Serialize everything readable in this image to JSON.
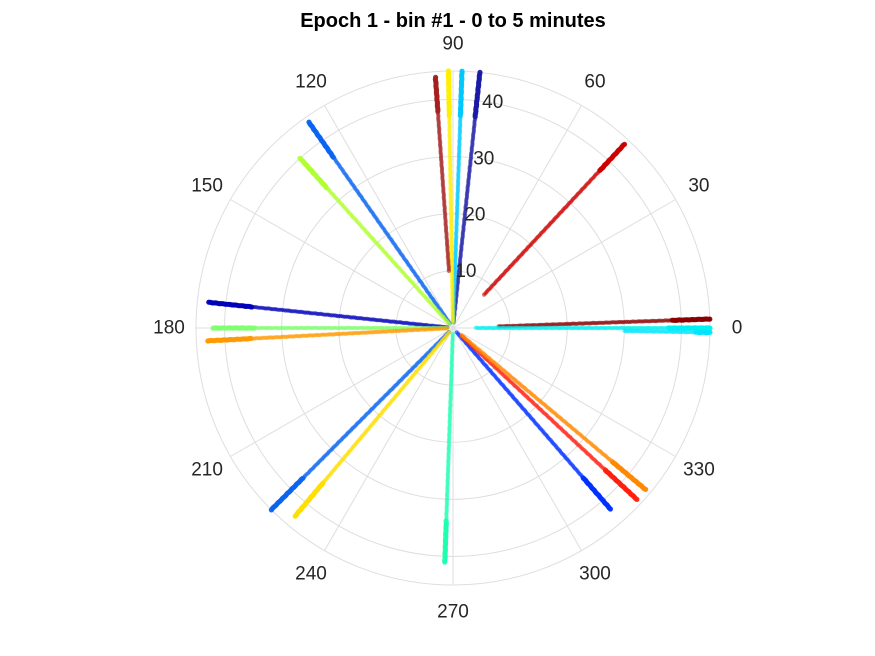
{
  "chart_data": {
    "type": "scatter",
    "subtype": "polar",
    "title": "Epoch 1 - bin #1 - 0 to 5 minutes",
    "theta_unit": "degrees",
    "r_lim": [
      0,
      45
    ],
    "angle_ticks": [
      "0",
      "30",
      "60",
      "90",
      "120",
      "150",
      "180",
      "210",
      "240",
      "270",
      "300",
      "330"
    ],
    "r_ticks": [
      "10",
      "20",
      "30",
      "40"
    ],
    "grid": true,
    "legend": "none",
    "colormap": "jet",
    "rays": [
      {
        "angle": 2,
        "r_start": 8,
        "r_end": 45,
        "color": "#8b0000"
      },
      {
        "angle": 0,
        "r_start": 4,
        "r_end": 45,
        "color": "#00f0f0"
      },
      {
        "angle": -1,
        "r_start": 30,
        "r_end": 45,
        "color": "#00e5ff"
      },
      {
        "angle": 47,
        "r_start": 8,
        "r_end": 44,
        "color": "#cc0000"
      },
      {
        "angle": 84,
        "r_start": 1,
        "r_end": 45,
        "color": "#1a1aa6"
      },
      {
        "angle": 88,
        "r_start": 1,
        "r_end": 45,
        "color": "#00c8ff"
      },
      {
        "angle": 91,
        "r_start": 1,
        "r_end": 45,
        "color": "#ffee00"
      },
      {
        "angle": 94,
        "r_start": 10,
        "r_end": 44,
        "color": "#a52020"
      },
      {
        "angle": 125,
        "r_start": 1,
        "r_end": 44,
        "color": "#0a64f0"
      },
      {
        "angle": 132,
        "r_start": 1,
        "r_end": 40,
        "color": "#b0ff30"
      },
      {
        "angle": 174,
        "r_start": 1,
        "r_end": 43,
        "color": "#0000bb"
      },
      {
        "angle": 180,
        "r_start": 1,
        "r_end": 42,
        "color": "#80ff70"
      },
      {
        "angle": 183,
        "r_start": 1,
        "r_end": 43,
        "color": "#ff9900"
      },
      {
        "angle": 225,
        "r_start": 1,
        "r_end": 45,
        "color": "#0a64f0"
      },
      {
        "angle": 230,
        "r_start": 1,
        "r_end": 43,
        "color": "#ffdd00"
      },
      {
        "angle": 268,
        "r_start": 1,
        "r_end": 41,
        "color": "#20ffb0"
      },
      {
        "angle": 311,
        "r_start": 1,
        "r_end": 42,
        "color": "#0030ff"
      },
      {
        "angle": 317,
        "r_start": 2,
        "r_end": 44,
        "color": "#ff2010"
      },
      {
        "angle": 320,
        "r_start": 2,
        "r_end": 44,
        "color": "#ff8800"
      }
    ]
  }
}
